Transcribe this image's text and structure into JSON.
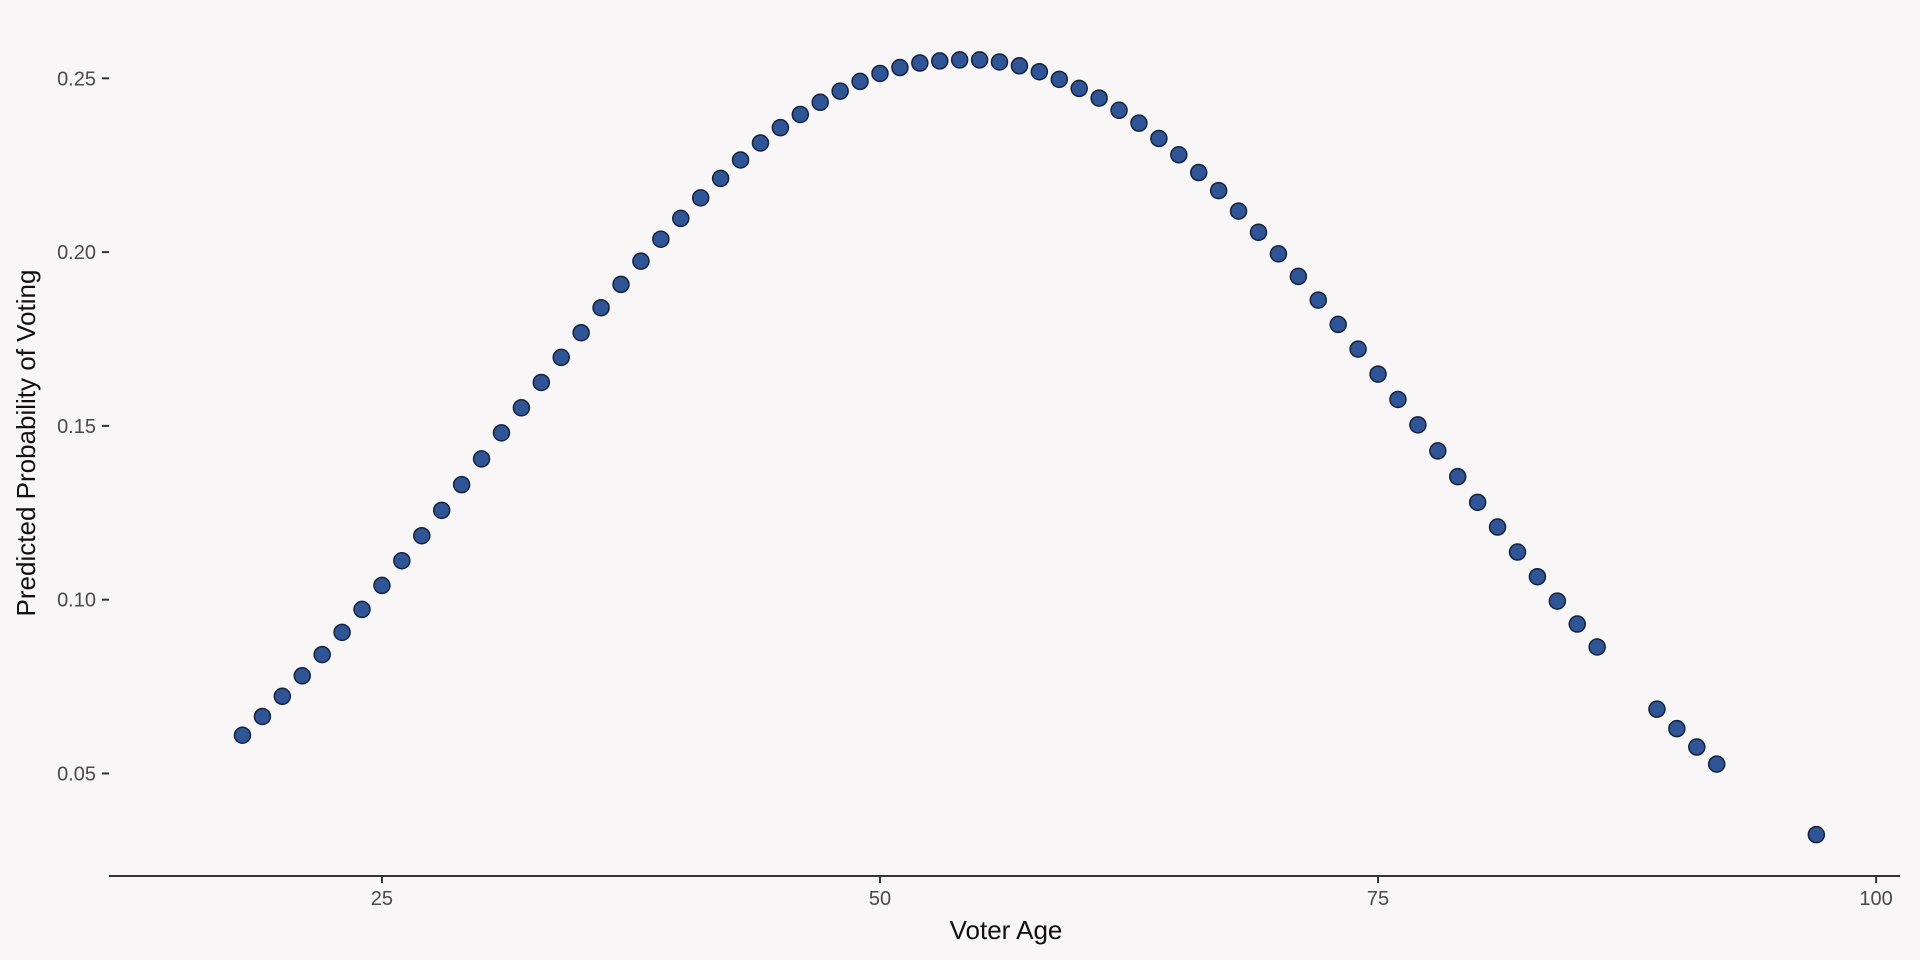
{
  "chart_data": {
    "type": "scatter",
    "title": "",
    "xlabel": "Voter Age",
    "ylabel": "Predicted Probability of Voting",
    "xlim": [
      11.3,
      101.2
    ],
    "ylim": [
      0.0205,
      0.2662
    ],
    "xticks": [
      25,
      50,
      75,
      100
    ],
    "xtick_labels": [
      "25",
      "50",
      "75",
      "100"
    ],
    "yticks": [
      0.05,
      0.1,
      0.15,
      0.2,
      0.25
    ],
    "ytick_labels": [
      "0.05",
      "0.10",
      "0.15",
      "0.20",
      "0.25"
    ],
    "grid": false,
    "legend": "none",
    "colors": {
      "point_fill": "#2f5597",
      "point_stroke": "#14213d",
      "background": "#f8f6f7",
      "axis": "#333333"
    },
    "x": [
      18,
      19,
      20,
      21,
      22,
      23,
      24,
      25,
      26,
      27,
      28,
      29,
      30,
      31,
      32,
      33,
      34,
      35,
      36,
      37,
      38,
      39,
      40,
      41,
      42,
      43,
      44,
      45,
      46,
      47,
      48,
      49,
      50,
      51,
      52,
      53,
      54,
      55,
      56,
      57,
      58,
      59,
      60,
      61,
      62,
      63,
      64,
      65,
      66,
      67,
      68,
      69,
      70,
      71,
      72,
      73,
      74,
      75,
      76,
      77,
      78,
      79,
      80,
      81,
      82,
      83,
      84,
      85,
      86,
      89,
      90,
      91,
      92,
      97
    ],
    "y": [
      0.061,
      0.0664,
      0.0722,
      0.0781,
      0.0842,
      0.0906,
      0.0972,
      0.1041,
      0.1112,
      0.1184,
      0.1257,
      0.1331,
      0.1405,
      0.148,
      0.1552,
      0.1625,
      0.1697,
      0.1768,
      0.184,
      0.1907,
      0.1974,
      0.2037,
      0.2097,
      0.2156,
      0.2212,
      0.2265,
      0.2314,
      0.2358,
      0.2396,
      0.2431,
      0.2463,
      0.2491,
      0.2514,
      0.2531,
      0.2544,
      0.255,
      0.2553,
      0.2553,
      0.2547,
      0.2536,
      0.2519,
      0.2497,
      0.2471,
      0.2443,
      0.2408,
      0.2371,
      0.2327,
      0.228,
      0.2229,
      0.2177,
      0.2118,
      0.2057,
      0.1995,
      0.193,
      0.1862,
      0.1792,
      0.1721,
      0.1649,
      0.1576,
      0.1503,
      0.1428,
      0.1354,
      0.128,
      0.1209,
      0.1137,
      0.1066,
      0.0996,
      0.093,
      0.0864,
      0.0685,
      0.0629,
      0.0576,
      0.0527,
      0.0324
    ]
  }
}
